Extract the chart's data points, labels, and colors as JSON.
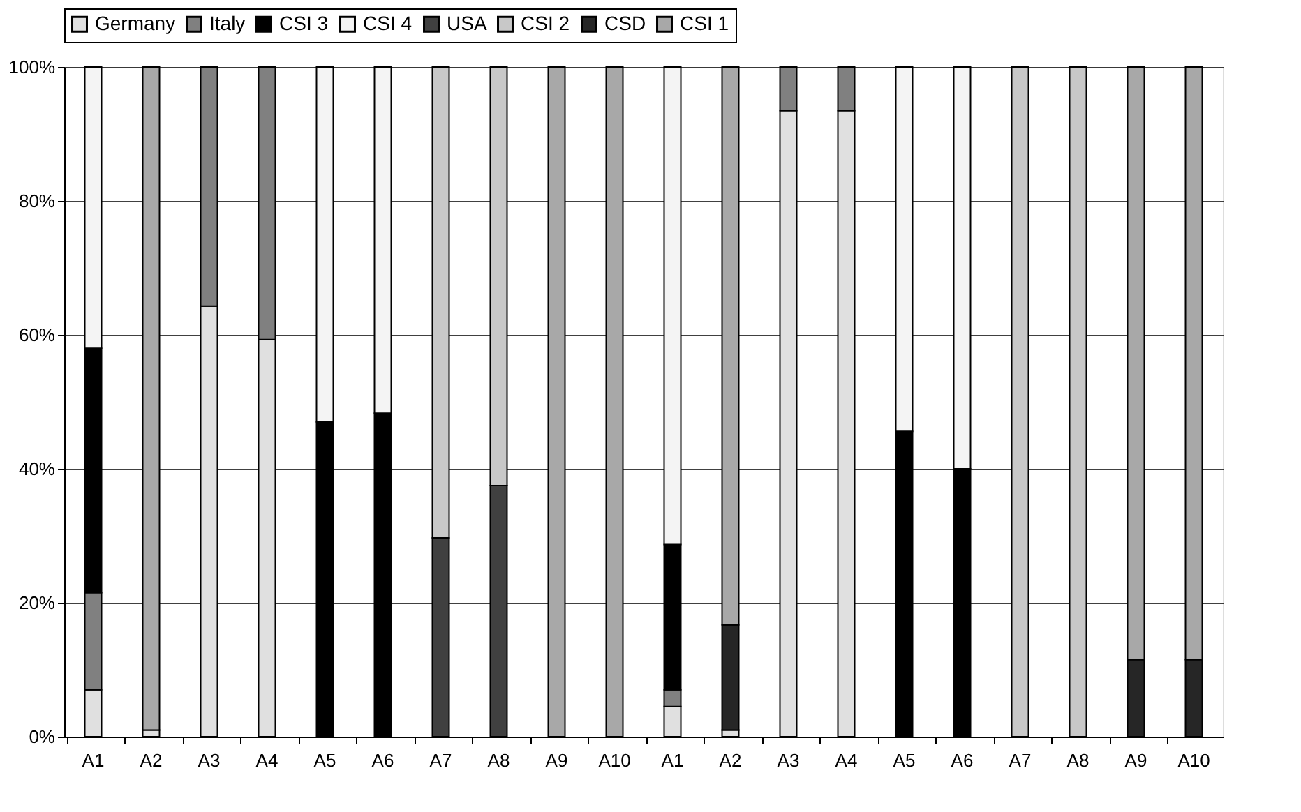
{
  "chart_data": {
    "type": "bar",
    "stacked": true,
    "categories": [
      "A1",
      "A2",
      "A3",
      "A4",
      "A5",
      "A6",
      "A7",
      "A8",
      "A9",
      "A10",
      "A1",
      "A2",
      "A3",
      "A4",
      "A5",
      "A6",
      "A7",
      "A8",
      "A9",
      "A10"
    ],
    "series": [
      {
        "name": "Germany",
        "color": "#e0e0e0",
        "values": [
          7,
          1,
          64.3,
          59.3,
          null,
          null,
          null,
          null,
          null,
          null,
          4.5,
          1,
          93.5,
          93.5,
          null,
          null,
          null,
          null,
          null,
          null
        ]
      },
      {
        "name": "Italy",
        "color": "#808080",
        "values": [
          14.5,
          null,
          35.7,
          40.7,
          null,
          null,
          null,
          null,
          null,
          null,
          2.5,
          null,
          6.5,
          6.5,
          null,
          null,
          null,
          null,
          null,
          null
        ]
      },
      {
        "name": "CSI 3",
        "color": "#000000",
        "values": [
          36.5,
          null,
          null,
          null,
          47,
          48.3,
          null,
          null,
          null,
          null,
          21.7,
          null,
          null,
          null,
          45.6,
          40,
          null,
          null,
          null,
          null
        ]
      },
      {
        "name": "CSI 4",
        "color": "#f4f4f4",
        "values": [
          42,
          null,
          null,
          null,
          53,
          51.7,
          null,
          null,
          null,
          null,
          71.3,
          null,
          null,
          null,
          54.4,
          60,
          null,
          null,
          null,
          null
        ]
      },
      {
        "name": "USA",
        "color": "#404040",
        "values": [
          null,
          null,
          null,
          null,
          null,
          null,
          29.7,
          37.5,
          null,
          null,
          null,
          null,
          null,
          null,
          null,
          null,
          null,
          null,
          null,
          null
        ]
      },
      {
        "name": "CSI 2",
        "color": "#c8c8c8",
        "values": [
          null,
          null,
          null,
          null,
          null,
          null,
          70.3,
          62.5,
          null,
          null,
          null,
          null,
          null,
          null,
          null,
          null,
          100,
          100,
          null,
          null
        ]
      },
      {
        "name": "CSD",
        "color": "#262626",
        "values": [
          null,
          null,
          null,
          null,
          null,
          null,
          null,
          null,
          null,
          null,
          null,
          15.7,
          null,
          null,
          null,
          null,
          null,
          null,
          11.5,
          11.5
        ]
      },
      {
        "name": "CSI 1",
        "color": "#a8a8a8",
        "values": [
          null,
          99,
          null,
          null,
          null,
          null,
          null,
          null,
          100,
          100,
          null,
          83.3,
          null,
          null,
          null,
          null,
          null,
          null,
          88.5,
          88.5
        ]
      }
    ],
    "ylim": [
      0,
      100
    ],
    "yticks": [
      {
        "value": 0,
        "label": "0%"
      },
      {
        "value": 20,
        "label": "20%"
      },
      {
        "value": 40,
        "label": "40%"
      },
      {
        "value": 60,
        "label": "60%"
      },
      {
        "value": 80,
        "label": "80%"
      },
      {
        "value": 100,
        "label": "100%"
      }
    ],
    "grid": "y",
    "legend": "top"
  }
}
